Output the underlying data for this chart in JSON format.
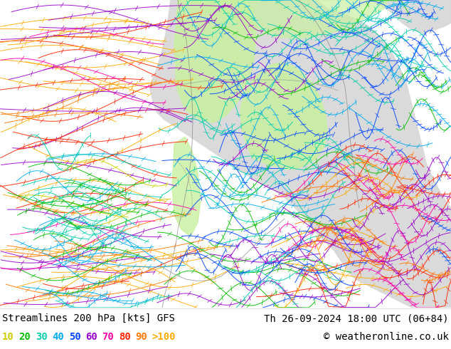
{
  "title_left": "Streamlines 200 hPa [kts] GFS",
  "title_right": "Th 26-09-2024 18:00 UTC (06+84)",
  "copyright": "© weatheronline.co.uk",
  "legend_values": [
    "10",
    "20",
    "30",
    "40",
    "50",
    "60",
    "70",
    "80",
    "90",
    ">100"
  ],
  "legend_colors": [
    "#cccc00",
    "#00bb00",
    "#00ccaa",
    "#00aaee",
    "#0044ff",
    "#9900cc",
    "#ff00aa",
    "#ff2200",
    "#ff7700",
    "#ffaa00"
  ],
  "bg_color": "#ffffff",
  "font_color": "#000000",
  "font_size_title": 10,
  "font_size_legend": 10,
  "fig_width": 6.34,
  "fig_height": 4.9,
  "dpi": 100,
  "ocean_color": "#e8e8e8",
  "land_color": "#d8d8d8",
  "green_shading": "#c8f0a0",
  "map_border_color": "#888888"
}
